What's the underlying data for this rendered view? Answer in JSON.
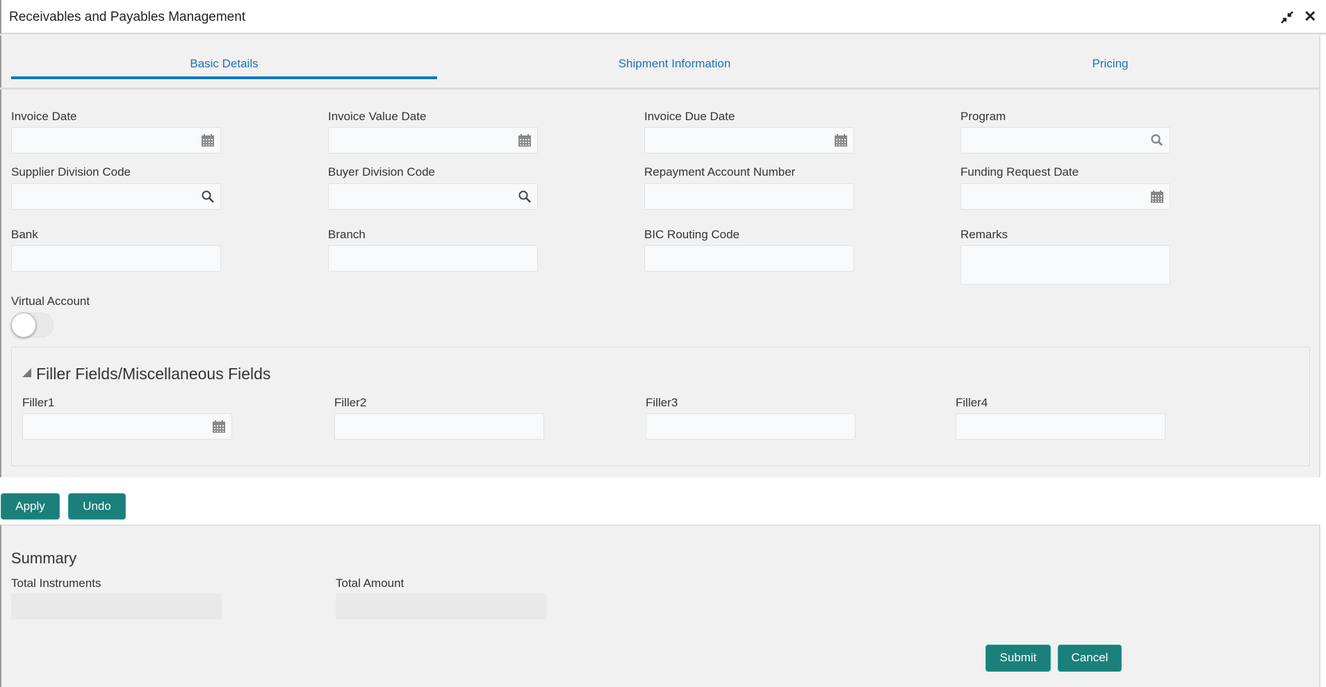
{
  "window": {
    "title": "Receivables and Payables Management"
  },
  "tabs": [
    {
      "label": "Basic Details",
      "active": true
    },
    {
      "label": "Shipment Information",
      "active": false
    },
    {
      "label": "Pricing",
      "active": false
    }
  ],
  "fields": {
    "invoice_date": {
      "label": "Invoice Date",
      "icon": "calendar-icon",
      "value": ""
    },
    "invoice_value_date": {
      "label": "Invoice Value Date",
      "icon": "calendar-icon",
      "value": ""
    },
    "invoice_due_date": {
      "label": "Invoice Due Date",
      "icon": "calendar-icon",
      "value": ""
    },
    "program": {
      "label": "Program",
      "icon": "search-icon",
      "value": ""
    },
    "supplier_division_code": {
      "label": "Supplier Division Code",
      "icon": "search-icon",
      "value": ""
    },
    "buyer_division_code": {
      "label": "Buyer Division Code",
      "icon": "search-icon",
      "value": ""
    },
    "repayment_account_number": {
      "label": "Repayment Account Number",
      "value": ""
    },
    "funding_request_date": {
      "label": "Funding Request Date",
      "icon": "calendar-icon",
      "value": ""
    },
    "bank": {
      "label": "Bank",
      "value": ""
    },
    "branch": {
      "label": "Branch",
      "value": ""
    },
    "bic_routing_code": {
      "label": "BIC Routing Code",
      "value": ""
    },
    "remarks": {
      "label": "Remarks",
      "value": ""
    },
    "virtual_account": {
      "label": "Virtual Account",
      "on": false
    }
  },
  "filler": {
    "title": "Filler Fields/Miscellaneous Fields",
    "expanded": true,
    "fields": [
      {
        "label": "Filler1",
        "icon": "calendar-icon",
        "value": ""
      },
      {
        "label": "Filler2",
        "value": ""
      },
      {
        "label": "Filler3",
        "value": ""
      },
      {
        "label": "Filler4",
        "value": ""
      }
    ]
  },
  "actions": {
    "apply": "Apply",
    "undo": "Undo"
  },
  "summary": {
    "title": "Summary",
    "total_instruments_label": "Total Instruments",
    "total_instruments": "",
    "total_amount_label": "Total Amount",
    "total_amount": ""
  },
  "footer": {
    "submit": "Submit",
    "cancel": "Cancel"
  },
  "colors": {
    "accent": "#0a76c6",
    "button": "#1b7f7a"
  }
}
